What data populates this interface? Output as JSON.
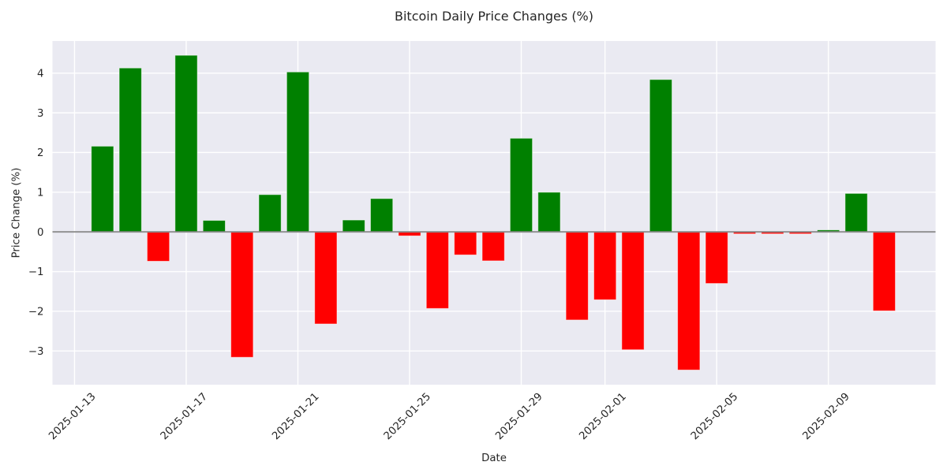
{
  "chart_data": {
    "type": "bar",
    "title": "Bitcoin Daily Price Changes (%)",
    "xlabel": "Date",
    "ylabel": "Price Change (%)",
    "series": [
      {
        "name": "daily-price-change-pct",
        "x": [
          "2025-01-14",
          "2025-01-15",
          "2025-01-16",
          "2025-01-17",
          "2025-01-18",
          "2025-01-19",
          "2025-01-20",
          "2025-01-21",
          "2025-01-22",
          "2025-01-23",
          "2025-01-24",
          "2025-01-25",
          "2025-01-26",
          "2025-01-27",
          "2025-01-28",
          "2025-01-29",
          "2025-01-30",
          "2025-01-31",
          "2025-02-01",
          "2025-02-02",
          "2025-02-03",
          "2025-02-04",
          "2025-02-05",
          "2025-02-06",
          "2025-02-07",
          "2025-02-08",
          "2025-02-09",
          "2025-02-10",
          "2025-02-11"
        ],
        "values": [
          2.16,
          4.13,
          -0.74,
          4.45,
          0.29,
          -3.16,
          0.94,
          4.03,
          -2.32,
          0.3,
          0.84,
          -0.1,
          -1.93,
          -0.58,
          -0.73,
          2.36,
          1.0,
          -2.22,
          -1.71,
          -2.97,
          3.84,
          -3.48,
          -1.3,
          -0.05,
          -0.05,
          -0.05,
          0.05,
          0.97,
          -1.99
        ]
      }
    ],
    "x_tick_labels": [
      "2025-01-13",
      "2025-01-17",
      "2025-01-21",
      "2025-01-25",
      "2025-01-29",
      "2025-02-01",
      "2025-02-05",
      "2025-02-09"
    ],
    "y_tick_values": [
      4,
      3,
      2,
      1,
      0,
      -1,
      -2,
      -3
    ],
    "y_tick_labels": [
      "4",
      "3",
      "2",
      "1",
      "0",
      "−1",
      "−2",
      "−3"
    ],
    "ylim": [
      -3.85,
      4.81
    ],
    "xlim_days": [
      -0.79,
      30.84
    ],
    "x_epoch": "2025-01-13",
    "bar_width_days": 0.8,
    "grid": true,
    "legend": false,
    "zero_line": 0
  },
  "style": {
    "positive_color": "#008000",
    "negative_color": "#ff0000",
    "plot_bg": "#eaeaf2",
    "grid_color": "#ffffff",
    "zero_line_color": "#808080",
    "text_color": "#262626",
    "figure_bg": "#ffffff"
  }
}
